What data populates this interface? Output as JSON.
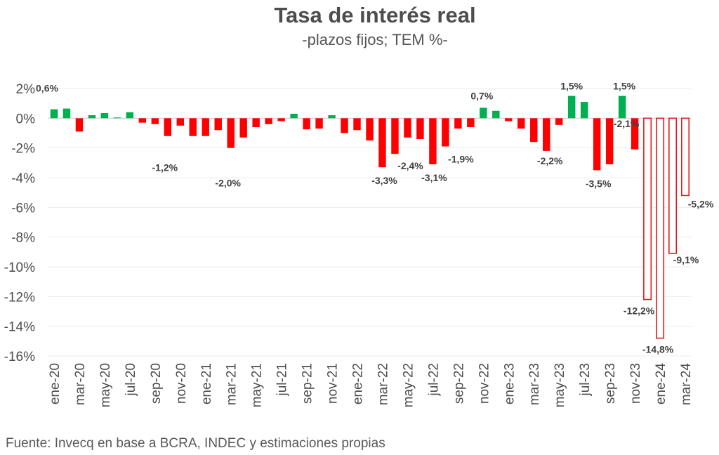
{
  "chart_data": {
    "type": "bar",
    "title": "Tasa de interés real",
    "subtitle": "-plazos fijos; TEM %-",
    "source": "Fuente: Invecq en base a BCRA, INDEC y estimaciones propias",
    "xlabel": "",
    "ylabel": "",
    "ylim": [
      -16,
      2
    ],
    "yticks": [
      2,
      0,
      -2,
      -4,
      -6,
      -8,
      -10,
      -12,
      -14,
      -16
    ],
    "ytick_labels": [
      "2%",
      "0%",
      "-2%",
      "-4%",
      "-6%",
      "-8%",
      "-10%",
      "-12%",
      "-14%",
      "-16%"
    ],
    "categories": [
      "ene-20",
      "feb-20",
      "mar-20",
      "abr-20",
      "may-20",
      "jun-20",
      "jul-20",
      "ago-20",
      "sep-20",
      "oct-20",
      "nov-20",
      "dic-20",
      "ene-21",
      "feb-21",
      "mar-21",
      "abr-21",
      "may-21",
      "jun-21",
      "jul-21",
      "ago-21",
      "sep-21",
      "oct-21",
      "nov-21",
      "dic-21",
      "ene-22",
      "feb-22",
      "mar-22",
      "abr-22",
      "may-22",
      "jun-22",
      "jul-22",
      "ago-22",
      "sep-22",
      "oct-22",
      "nov-22",
      "dic-22",
      "ene-23",
      "feb-23",
      "mar-23",
      "abr-23",
      "may-23",
      "jun-23",
      "jul-23",
      "ago-23",
      "sep-23",
      "oct-23",
      "nov-23",
      "dic-23",
      "ene-24",
      "feb-24",
      "mar-24"
    ],
    "x_tick_labels": [
      "ene-20",
      "mar-20",
      "may-20",
      "jul-20",
      "sep-20",
      "nov-20",
      "ene-21",
      "mar-21",
      "may-21",
      "jul-21",
      "sep-21",
      "nov-21",
      "ene-22",
      "mar-22",
      "may-22",
      "jul-22",
      "sep-22",
      "nov-22",
      "ene-23",
      "mar-23",
      "may-23",
      "jul-23",
      "sep-23",
      "nov-23",
      "ene-24",
      "mar-24"
    ],
    "values": [
      0.6,
      0.65,
      -0.9,
      0.2,
      0.35,
      0.05,
      0.4,
      -0.3,
      -0.4,
      -1.2,
      -0.5,
      -1.2,
      -1.2,
      -0.8,
      -2.0,
      -1.3,
      -0.6,
      -0.4,
      -0.2,
      0.3,
      -0.75,
      -0.7,
      0.2,
      -1.0,
      -0.8,
      -1.5,
      -3.3,
      -2.4,
      -1.3,
      -1.4,
      -3.1,
      -1.9,
      -0.7,
      -0.6,
      0.7,
      0.5,
      -0.2,
      -0.7,
      -1.6,
      -2.2,
      -0.45,
      1.5,
      1.1,
      -3.5,
      -3.1,
      1.5,
      -2.1,
      -12.2,
      -14.8,
      -9.1,
      -5.2
    ],
    "estimated_from_index": 47,
    "colors": {
      "positive": "#00b050",
      "negative": "#ff0000",
      "estimated_outline": "#e31a1c",
      "grid": "#ececec",
      "zero_line": "#d0d0d0"
    },
    "data_labels": [
      {
        "index": 0,
        "text": "0,6%"
      },
      {
        "index": 9,
        "text": "-1,2%"
      },
      {
        "index": 14,
        "text": "-2,0%"
      },
      {
        "index": 26,
        "text": "-3,3%"
      },
      {
        "index": 27,
        "text": "-2,4%"
      },
      {
        "index": 30,
        "text": "-3,1%"
      },
      {
        "index": 31,
        "text": "-1,9%"
      },
      {
        "index": 34,
        "text": "0,7%"
      },
      {
        "index": 39,
        "text": "-2,2%"
      },
      {
        "index": 41,
        "text": "1,5%"
      },
      {
        "index": 43,
        "text": "-3,5%"
      },
      {
        "index": 45,
        "text": "1,5%"
      },
      {
        "index": 46,
        "text": "-2,1%"
      },
      {
        "index": 47,
        "text": "-12,2%"
      },
      {
        "index": 48,
        "text": "-14,8%"
      },
      {
        "index": 49,
        "text": "-9,1%"
      },
      {
        "index": 50,
        "text": "-5,2%"
      }
    ]
  }
}
